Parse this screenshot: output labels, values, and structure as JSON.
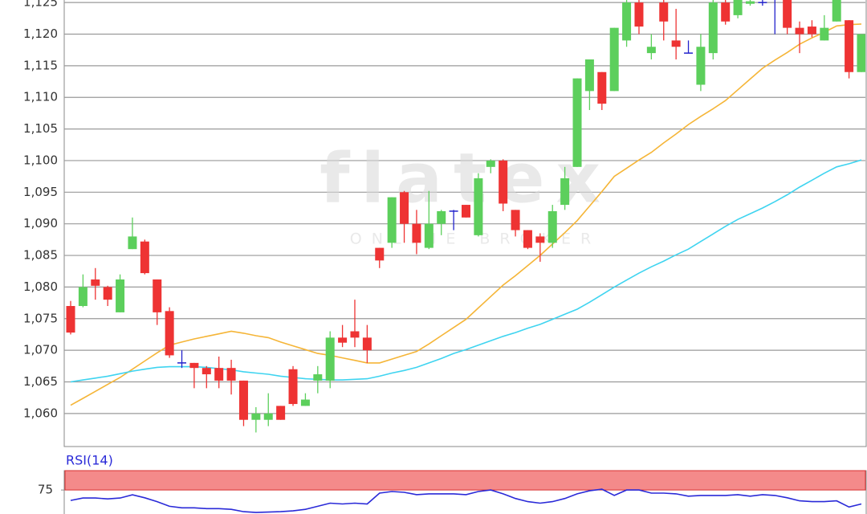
{
  "chart_data": [
    {
      "type": "candlestick",
      "open": [
        1.077,
        1.077,
        1.0812,
        1.08,
        1.076,
        1.086,
        1.0872,
        1.0812,
        1.0762,
        1.068,
        1.068,
        1.0672,
        1.0672,
        1.0672,
        1.0652,
        1.059,
        1.059,
        1.0612,
        1.067,
        1.0612,
        1.0652,
        1.0652,
        1.072,
        1.073,
        1.072,
        1.0862,
        1.087,
        1.095,
        1.09,
        1.0862,
        1.09,
        1.092,
        1.093,
        1.0882,
        1.099,
        1.1,
        1.0922,
        1.089,
        1.088,
        1.087,
        1.093,
        1.099,
        1.111,
        1.114,
        1.111,
        1.119,
        1.125,
        1.117,
        1.125,
        1.119,
        1.117,
        1.112,
        1.117,
        1.125,
        1.123,
        1.1248,
        1.125,
        1.1255,
        1.126,
        1.121,
        1.1212,
        1.119,
        1.122,
        1.1222,
        1.114
      ],
      "high": [
        1.0778,
        1.082,
        1.083,
        1.0802,
        1.082,
        1.091,
        1.0875,
        1.0812,
        1.0768,
        1.07,
        1.068,
        1.0675,
        1.069,
        1.0685,
        1.0652,
        1.061,
        1.0632,
        1.0612,
        1.0675,
        1.0632,
        1.0675,
        1.073,
        1.074,
        1.078,
        1.074,
        1.0862,
        1.0942,
        1.0952,
        1.0922,
        1.0952,
        1.0922,
        1.0922,
        1.093,
        1.098,
        1.1002,
        1.1002,
        1.0922,
        1.089,
        1.0885,
        1.093,
        1.099,
        1.113,
        1.116,
        1.114,
        1.121,
        1.126,
        1.126,
        1.12,
        1.1255,
        1.124,
        1.119,
        1.12,
        1.126,
        1.1255,
        1.1262,
        1.1256,
        1.1256,
        1.126,
        1.1262,
        1.122,
        1.1222,
        1.123,
        1.126,
        1.1222,
        1.12
      ],
      "low": [
        1.0725,
        1.0768,
        1.078,
        1.077,
        1.076,
        1.086,
        1.082,
        1.074,
        1.0688,
        1.0672,
        1.064,
        1.064,
        1.064,
        1.063,
        1.058,
        1.057,
        1.058,
        1.059,
        1.0612,
        1.0612,
        1.0632,
        1.064,
        1.0705,
        1.0705,
        1.068,
        1.083,
        1.0862,
        1.087,
        1.0852,
        1.086,
        1.0882,
        1.089,
        1.091,
        1.088,
        1.098,
        1.092,
        1.088,
        1.086,
        1.084,
        1.0862,
        1.0922,
        1.099,
        1.108,
        1.108,
        1.111,
        1.118,
        1.12,
        1.116,
        1.119,
        1.116,
        1.117,
        1.111,
        1.116,
        1.1215,
        1.1225,
        1.1245,
        1.1245,
        1.12,
        1.12,
        1.117,
        1.1195,
        1.119,
        1.122,
        1.113,
        1.114
      ],
      "close": [
        1.0728,
        1.08,
        1.0802,
        1.078,
        1.0812,
        1.088,
        1.0822,
        1.076,
        1.0692,
        1.068,
        1.0672,
        1.0662,
        1.0652,
        1.0652,
        1.059,
        1.06,
        1.06,
        1.059,
        1.0615,
        1.0622,
        1.0662,
        1.072,
        1.0712,
        1.072,
        1.07,
        1.0842,
        1.0942,
        1.09,
        1.087,
        1.09,
        1.092,
        1.092,
        1.091,
        1.0972,
        1.1,
        1.0932,
        1.089,
        1.0862,
        1.087,
        1.092,
        1.0972,
        1.113,
        1.116,
        1.109,
        1.121,
        1.125,
        1.1212,
        1.118,
        1.122,
        1.118,
        1.117,
        1.118,
        1.125,
        1.122,
        1.126,
        1.1252,
        1.125,
        1.1255,
        1.121,
        1.12,
        1.12,
        1.121,
        1.126,
        1.114,
        1.12
      ],
      "up_color": "#5ccf5c",
      "down_color": "#ee3333",
      "doji_color": "#2222cc",
      "moving_averages": [
        {
          "color": "#f5b537",
          "values": [
            1.0613,
            1.0624,
            1.0635,
            1.0646,
            1.0657,
            1.067,
            1.0683,
            1.0696,
            1.0708,
            1.0713,
            1.0718,
            1.0722,
            1.0726,
            1.073,
            1.0727,
            1.0723,
            1.072,
            1.0713,
            1.0707,
            1.0701,
            1.0695,
            1.0692,
            1.0688,
            1.0684,
            1.068,
            1.068,
            1.0686,
            1.0692,
            1.0698,
            1.071,
            1.0723,
            1.0736,
            1.0749,
            1.0767,
            1.0785,
            1.0803,
            1.0818,
            1.0834,
            1.085,
            1.0868,
            1.0886,
            1.0905,
            1.0928,
            1.0951,
            1.0975,
            1.0988,
            1.1001,
            1.1013,
            1.1028,
            1.1042,
            1.1057,
            1.107,
            1.1082,
            1.1095,
            1.1112,
            1.1129,
            1.1146,
            1.1159,
            1.1171,
            1.1184,
            1.1194,
            1.1203,
            1.1213,
            1.1215,
            1.1216
          ]
        },
        {
          "color": "#3fd4f0",
          "values": [
            1.065,
            1.0653,
            1.0656,
            1.0659,
            1.0663,
            1.0667,
            1.067,
            1.0673,
            1.0674,
            1.0674,
            1.0674,
            1.0673,
            1.0671,
            1.0669,
            1.0666,
            1.0664,
            1.0662,
            1.0659,
            1.0657,
            1.0655,
            1.0654,
            1.0653,
            1.0653,
            1.0654,
            1.0655,
            1.0659,
            1.0664,
            1.0668,
            1.0673,
            1.068,
            1.0687,
            1.0695,
            1.0701,
            1.0708,
            1.0715,
            1.0722,
            1.0728,
            1.0735,
            1.0741,
            1.0749,
            1.0757,
            1.0765,
            1.0776,
            1.0788,
            1.08,
            1.0811,
            1.0822,
            1.0832,
            1.0841,
            1.0851,
            1.086,
            1.0872,
            1.0884,
            1.0896,
            1.0907,
            1.0916,
            1.0925,
            1.0935,
            1.0946,
            1.0958,
            1.0969,
            1.098,
            1.099,
            1.0995,
            1.1001
          ]
        }
      ],
      "ylim": [
        1.0549,
        1.1254
      ],
      "yticks": [
        {
          "value": 1.06,
          "label": "1,060"
        },
        {
          "value": 1.065,
          "label": "1,065"
        },
        {
          "value": 1.07,
          "label": "1,070"
        },
        {
          "value": 1.075,
          "label": "1,075"
        },
        {
          "value": 1.08,
          "label": "1,080"
        },
        {
          "value": 1.085,
          "label": "1,085"
        },
        {
          "value": 1.09,
          "label": "1,090"
        },
        {
          "value": 1.095,
          "label": "1,095"
        },
        {
          "value": 1.1,
          "label": "1,100"
        },
        {
          "value": 1.105,
          "label": "1,105"
        },
        {
          "value": 1.11,
          "label": "1,110"
        },
        {
          "value": 1.115,
          "label": "1,115"
        },
        {
          "value": 1.12,
          "label": "1,120"
        },
        {
          "value": 1.125,
          "label": "1,125"
        }
      ],
      "grid": true,
      "watermark": {
        "logo": "flatex",
        "tagline": "ONLINE BROKER"
      }
    },
    {
      "type": "line",
      "title": "RSI(14)",
      "color": "#2a2ad8",
      "values": [
        61.5,
        64.6,
        64.6,
        63.5,
        64.6,
        68.8,
        65,
        60,
        54,
        52,
        52,
        51,
        51,
        50,
        47,
        46,
        46.5,
        47,
        48,
        50,
        54,
        58,
        57,
        58,
        57,
        71,
        73,
        72,
        69,
        70,
        70,
        70,
        69,
        73,
        75,
        70,
        64,
        60,
        58,
        60,
        64,
        70,
        74,
        76,
        68,
        75,
        75,
        71,
        71,
        70,
        67,
        68,
        68,
        68,
        69,
        67,
        69,
        68,
        65,
        61,
        60,
        60,
        61,
        53,
        57
      ],
      "ylim": [
        44,
        100
      ],
      "yticks": [
        75
      ],
      "band": [
        75,
        100
      ],
      "band_color": "#f48a8a"
    }
  ]
}
